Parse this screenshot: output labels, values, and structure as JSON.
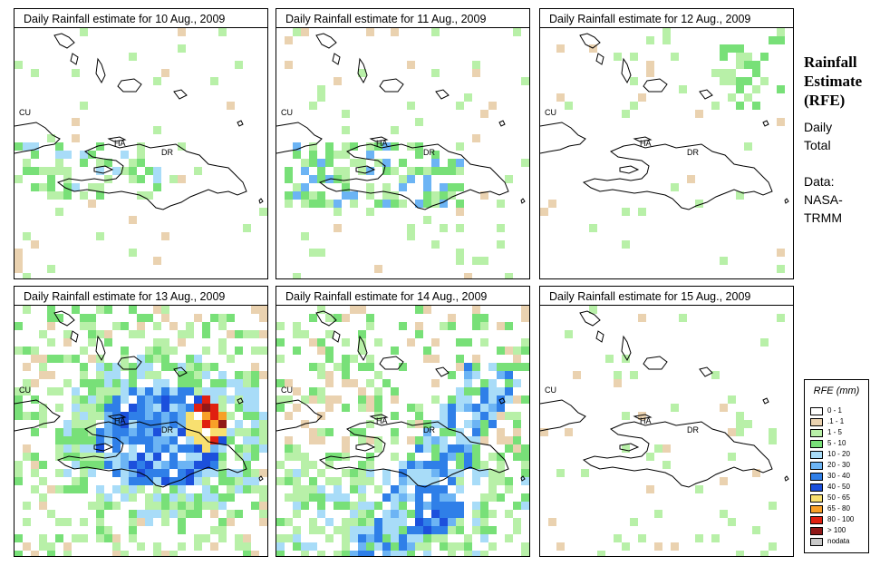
{
  "title": {
    "lines": [
      "Rainfall",
      "Estimate",
      "(RFE)"
    ]
  },
  "subtitle": {
    "lines": [
      "Daily",
      "Total"
    ]
  },
  "source": {
    "lines": [
      "Data:",
      "NASA-",
      "TRMM"
    ]
  },
  "map_labels": {
    "cuba": "CU",
    "haiti": "HA",
    "dominican_republic": "DR"
  },
  "panels": [
    {
      "title": "Daily Rainfall estimate for  10 Aug., 2009",
      "intensity": "light-west"
    },
    {
      "title": "Daily Rainfall estimate for  11 Aug., 2009",
      "intensity": "light-haiti"
    },
    {
      "title": "Daily Rainfall estimate for  12 Aug., 2009",
      "intensity": "sparse"
    },
    {
      "title": "Daily Rainfall estimate for  13 Aug., 2009",
      "intensity": "heavy"
    },
    {
      "title": "Daily Rainfall estimate for  14 Aug., 2009",
      "intensity": "moderate"
    },
    {
      "title": "Daily Rainfall estimate for  15 Aug., 2009",
      "intensity": "very-sparse"
    }
  ],
  "legend": {
    "title": "RFE (mm)",
    "items": [
      {
        "label": "0 - 1",
        "color": "#ffffff"
      },
      {
        "label": ".1 - 1",
        "color": "#ead2b0"
      },
      {
        "label": "1 - 5",
        "color": "#b8f0a8"
      },
      {
        "label": "5 - 10",
        "color": "#78e078"
      },
      {
        "label": "10 - 20",
        "color": "#a8dcf8"
      },
      {
        "label": "20 - 30",
        "color": "#6cb4f4"
      },
      {
        "label": "30 - 40",
        "color": "#2f7fe8"
      },
      {
        "label": "40 - 50",
        "color": "#1c50dc"
      },
      {
        "label": "50 - 65",
        "color": "#f8e070"
      },
      {
        "label": "65 - 80",
        "color": "#f8a028"
      },
      {
        "label": "80 - 100",
        "color": "#e02010"
      },
      {
        "label": "> 100",
        "color": "#901818"
      },
      {
        "label": "nodata",
        "color": "#c8c8c8"
      }
    ]
  }
}
